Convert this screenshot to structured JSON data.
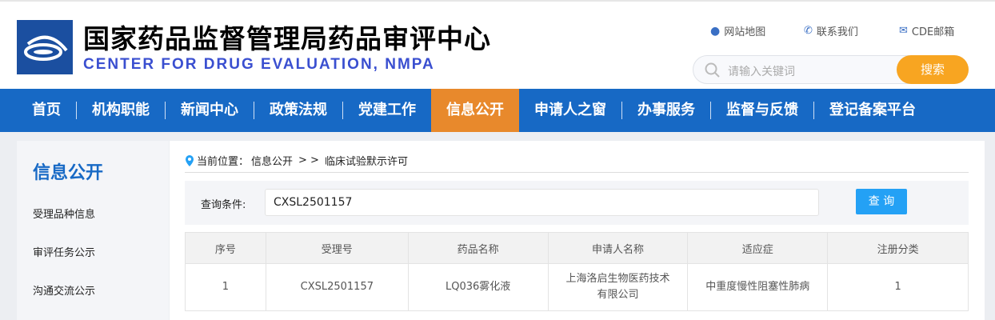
{
  "header": {
    "title_cn": "国家药品监督管理局药品审评中心",
    "title_en": "CENTER FOR DRUG EVALUATION, NMPA",
    "links": [
      {
        "icon": "map-pin-icon",
        "label": "网站地图"
      },
      {
        "icon": "phone-icon",
        "label": "联系我们"
      },
      {
        "icon": "mail-icon",
        "label": "CDE邮箱"
      }
    ],
    "search": {
      "placeholder": "请输入关键词",
      "button": "搜索"
    }
  },
  "nav": {
    "items": [
      "首页",
      "机构职能",
      "新闻中心",
      "政策法规",
      "党建工作",
      "信息公开",
      "申请人之窗",
      "办事服务",
      "监督与反馈",
      "登记备案平台"
    ],
    "active": "信息公开"
  },
  "sidebar": {
    "title": "信息公开",
    "items": [
      "受理品种信息",
      "审评任务公示",
      "沟通交流公示"
    ]
  },
  "main": {
    "breadcrumb": {
      "prefix": "当前位置：",
      "section": "信息公开",
      "sep": ">  >",
      "page": "临床试验默示许可"
    },
    "query": {
      "label": "查询条件:",
      "value": "CXSL2501157",
      "button": "查 询"
    },
    "table": {
      "headers": [
        "序号",
        "受理号",
        "药品名称",
        "申请人名称",
        "适应症",
        "注册分类"
      ],
      "rows": [
        [
          "1",
          "CXSL2501157",
          "LQ036雾化液",
          "上海洛启生物医药技术有限公司",
          "中重度慢性阻塞性肺病",
          "1"
        ]
      ]
    }
  },
  "colors": {
    "nav": "#1769c5",
    "active": "#e8892c",
    "search_button": "#f8a521",
    "query_button": "#24a1f5"
  }
}
